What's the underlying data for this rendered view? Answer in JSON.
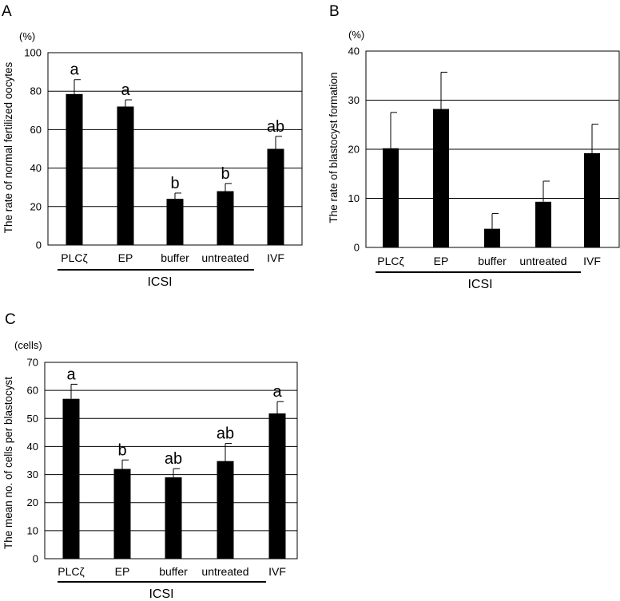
{
  "chart_data": [
    {
      "panel": "A",
      "type": "bar",
      "unit": "(%)",
      "ylabel": "The rate of normal fertilized oocytes",
      "ylim": [
        0,
        100
      ],
      "yticks": [
        0,
        20,
        40,
        60,
        80,
        100
      ],
      "grid": true,
      "categories": [
        "PLCζ",
        "EP",
        "buffer",
        "untreated",
        "IVF"
      ],
      "values": [
        78.5,
        72,
        24,
        28,
        50
      ],
      "errors": [
        7.5,
        3.5,
        3,
        4,
        6.5
      ],
      "significance": [
        "a",
        "a",
        "b",
        "b",
        "ab"
      ],
      "group_label": "ICSI",
      "bar_color": "#000000"
    },
    {
      "panel": "B",
      "type": "bar",
      "unit": "(%)",
      "ylabel": "The rate of blastocyst formation",
      "ylim": [
        0,
        40
      ],
      "yticks": [
        0,
        10,
        20,
        30,
        40
      ],
      "grid": true,
      "categories": [
        "PLCζ",
        "EP",
        "buffer",
        "untreated",
        "IVF"
      ],
      "values": [
        20.2,
        28.2,
        3.8,
        9.3,
        19.2
      ],
      "errors": [
        7.3,
        7.5,
        3.1,
        4.2,
        5.9
      ],
      "significance": [
        "",
        "",
        "",
        "",
        ""
      ],
      "group_label": "ICSI",
      "bar_color": "#000000"
    },
    {
      "panel": "C",
      "type": "bar",
      "unit": "(cells)",
      "ylabel": "The mean no. of cells per blastocyst",
      "ylim": [
        0,
        70
      ],
      "yticks": [
        0,
        10,
        20,
        30,
        40,
        50,
        60,
        70
      ],
      "grid": true,
      "categories": [
        "PLCζ",
        "EP",
        "buffer",
        "untreated",
        "IVF"
      ],
      "values": [
        57,
        32,
        29,
        34.8,
        51.8
      ],
      "errors": [
        5.2,
        3.2,
        3.1,
        6.3,
        4.2
      ],
      "significance": [
        "a",
        "b",
        "ab",
        "ab",
        "a"
      ],
      "group_label": "ICSI",
      "bar_color": "#000000"
    }
  ]
}
